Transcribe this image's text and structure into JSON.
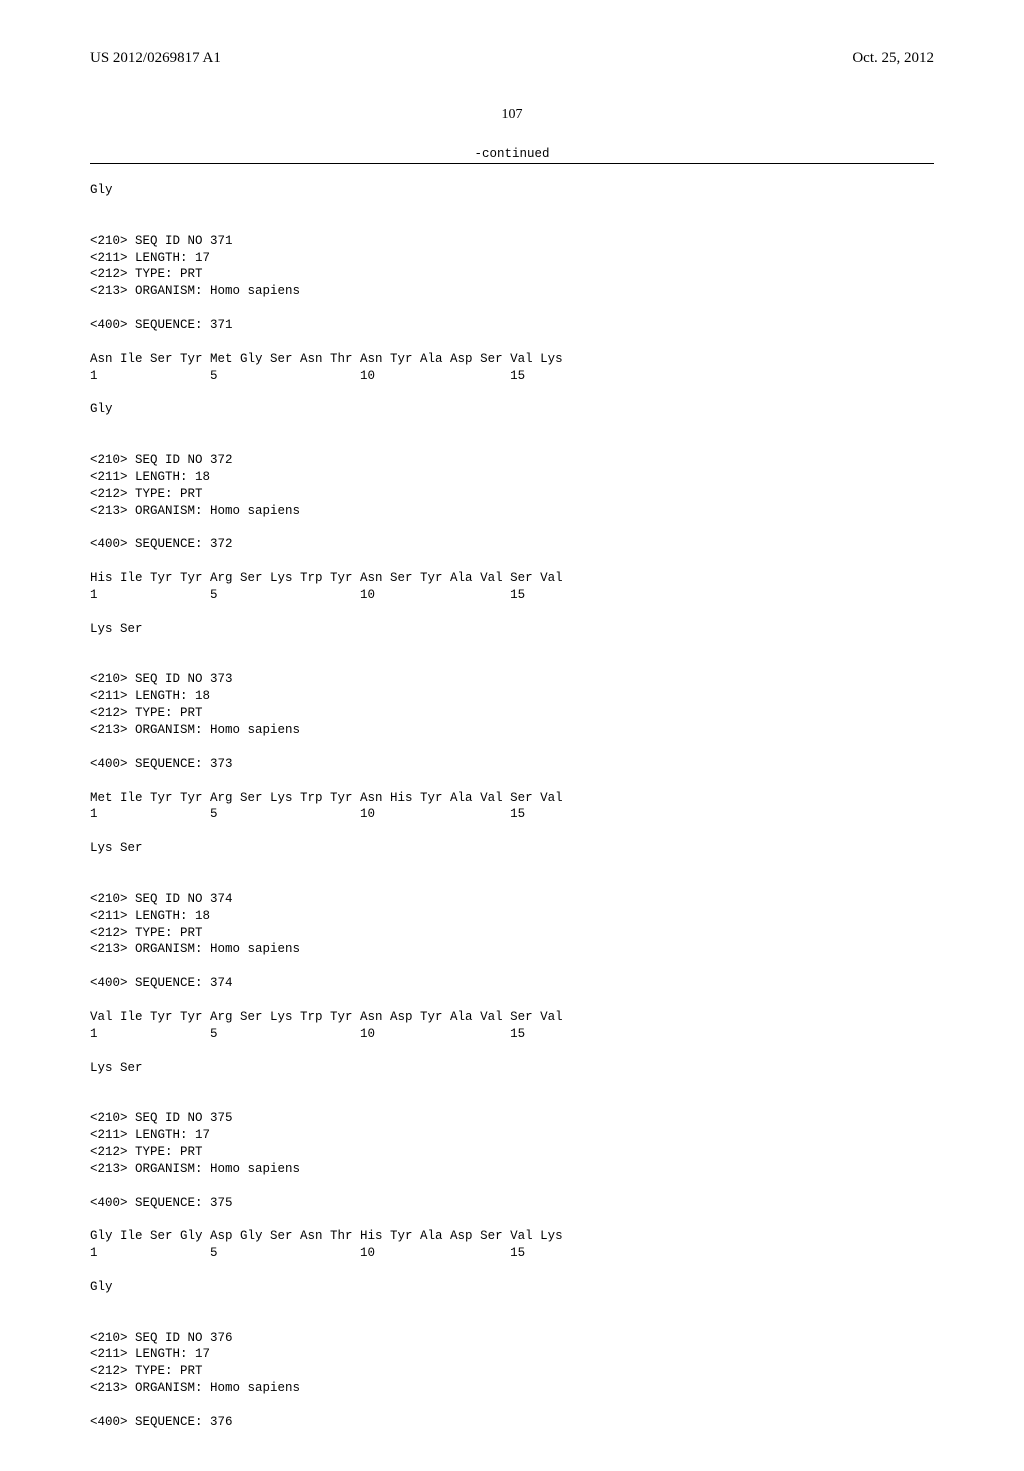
{
  "header": {
    "pubnum": "US 2012/0269817 A1",
    "date": "Oct. 25, 2012"
  },
  "page_number": "107",
  "continued": "-continued",
  "entries": [
    {
      "prefix": "Gly",
      "meta": [
        "<210> SEQ ID NO 371",
        "<211> LENGTH: 17",
        "<212> TYPE: PRT",
        "<213> ORGANISM: Homo sapiens"
      ],
      "seqline": "<400> SEQUENCE: 371",
      "residues": "Asn Ile Ser Tyr Met Gly Ser Asn Thr Asn Tyr Ala Asp Ser Val Lys",
      "numbers": "1               5                   10                  15",
      "tail": "Gly"
    },
    {
      "meta": [
        "<210> SEQ ID NO 372",
        "<211> LENGTH: 18",
        "<212> TYPE: PRT",
        "<213> ORGANISM: Homo sapiens"
      ],
      "seqline": "<400> SEQUENCE: 372",
      "residues": "His Ile Tyr Tyr Arg Ser Lys Trp Tyr Asn Ser Tyr Ala Val Ser Val",
      "numbers": "1               5                   10                  15",
      "tail": "Lys Ser"
    },
    {
      "meta": [
        "<210> SEQ ID NO 373",
        "<211> LENGTH: 18",
        "<212> TYPE: PRT",
        "<213> ORGANISM: Homo sapiens"
      ],
      "seqline": "<400> SEQUENCE: 373",
      "residues": "Met Ile Tyr Tyr Arg Ser Lys Trp Tyr Asn His Tyr Ala Val Ser Val",
      "numbers": "1               5                   10                  15",
      "tail": "Lys Ser"
    },
    {
      "meta": [
        "<210> SEQ ID NO 374",
        "<211> LENGTH: 18",
        "<212> TYPE: PRT",
        "<213> ORGANISM: Homo sapiens"
      ],
      "seqline": "<400> SEQUENCE: 374",
      "residues": "Val Ile Tyr Tyr Arg Ser Lys Trp Tyr Asn Asp Tyr Ala Val Ser Val",
      "numbers": "1               5                   10                  15",
      "tail": "Lys Ser"
    },
    {
      "meta": [
        "<210> SEQ ID NO 375",
        "<211> LENGTH: 17",
        "<212> TYPE: PRT",
        "<213> ORGANISM: Homo sapiens"
      ],
      "seqline": "<400> SEQUENCE: 375",
      "residues": "Gly Ile Ser Gly Asp Gly Ser Asn Thr His Tyr Ala Asp Ser Val Lys",
      "numbers": "1               5                   10                  15",
      "tail": "Gly"
    },
    {
      "meta": [
        "<210> SEQ ID NO 376",
        "<211> LENGTH: 17",
        "<212> TYPE: PRT",
        "<213> ORGANISM: Homo sapiens"
      ],
      "seqline": "<400> SEQUENCE: 376"
    }
  ]
}
